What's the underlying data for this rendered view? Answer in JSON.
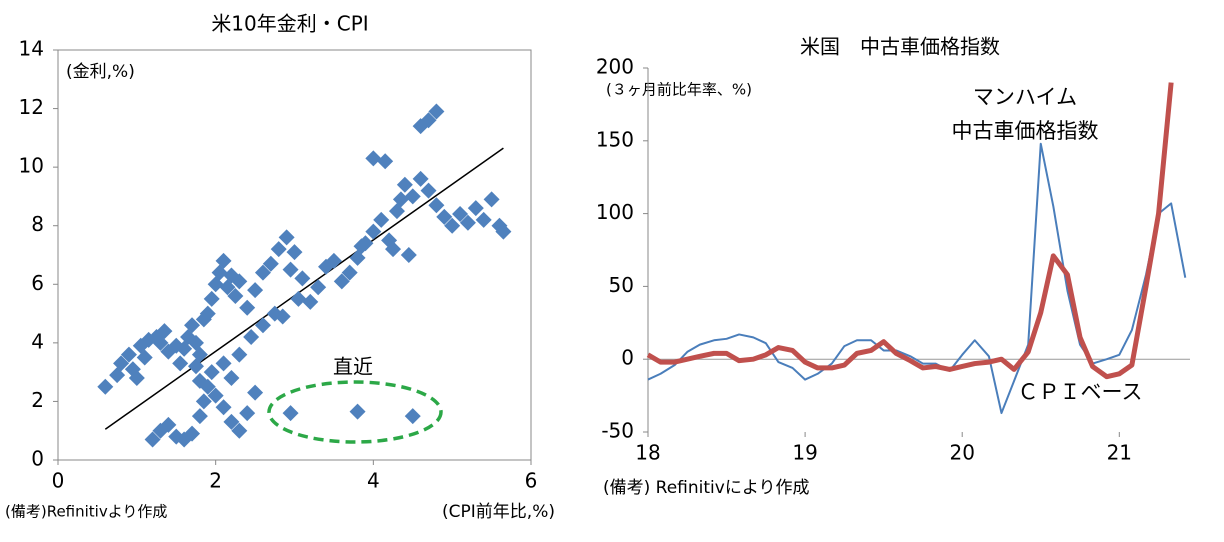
{
  "chart_data": [
    {
      "type": "scatter",
      "title": "米10年金利・CPI",
      "y_label": "(金利,%)",
      "x_label": "(CPI前年比,%)",
      "note": "(備考)Refinitivより作成",
      "annotation": "直近",
      "color": "#4f81bd",
      "xlim": [
        0,
        6
      ],
      "xticks": [
        0,
        2,
        4,
        6
      ],
      "ylim": [
        0,
        14
      ],
      "yticks": [
        0,
        2,
        4,
        6,
        8,
        10,
        12,
        14
      ],
      "x": [
        0.6,
        0.75,
        0.8,
        0.9,
        0.95,
        1.0,
        1.05,
        1.1,
        1.15,
        1.25,
        1.3,
        1.35,
        1.4,
        1.5,
        1.55,
        1.6,
        1.65,
        1.7,
        1.75,
        1.8,
        1.85,
        1.9,
        1.95,
        2.0,
        2.05,
        2.1,
        2.15,
        2.2,
        2.25,
        2.3,
        2.4,
        2.5,
        2.6,
        2.7,
        2.8,
        2.9,
        3.0,
        2.95,
        3.1,
        3.2,
        3.3,
        3.4,
        3.5,
        3.6,
        3.7,
        3.8,
        3.9,
        4.0,
        4.1,
        4.2,
        4.3,
        4.35,
        4.4,
        4.5,
        4.6,
        4.7,
        4.8,
        4.9,
        5.0,
        5.1,
        5.2,
        5.3,
        5.4,
        5.5,
        5.6,
        5.65,
        4.0,
        4.15,
        4.6,
        4.7,
        4.8,
        4.45,
        4.25,
        3.85,
        1.5,
        1.2,
        1.3,
        1.4,
        1.6,
        1.7,
        1.8,
        1.85,
        1.9,
        1.95,
        2.0,
        2.1,
        2.2,
        2.3,
        2.4,
        2.5,
        2.2,
        2.1,
        2.3,
        2.45,
        2.6,
        2.75,
        2.85,
        3.05,
        1.8,
        1.75,
        2.95,
        3.8,
        4.5
      ],
      "values": [
        2.5,
        2.9,
        3.3,
        3.6,
        3.1,
        2.8,
        3.9,
        3.5,
        4.1,
        4.2,
        4.0,
        4.4,
        3.7,
        3.9,
        3.3,
        3.8,
        4.2,
        4.6,
        4.0,
        3.6,
        4.8,
        5.0,
        5.5,
        6.0,
        6.4,
        6.8,
        5.9,
        6.3,
        5.6,
        6.1,
        5.2,
        5.8,
        6.4,
        6.7,
        7.2,
        7.6,
        7.1,
        6.5,
        6.2,
        5.4,
        5.9,
        6.6,
        6.8,
        6.1,
        6.4,
        6.9,
        7.4,
        7.8,
        8.2,
        7.5,
        8.5,
        8.9,
        9.4,
        9.0,
        9.6,
        9.2,
        8.7,
        8.3,
        8.0,
        8.4,
        8.1,
        8.6,
        8.2,
        8.9,
        8.0,
        7.8,
        10.3,
        10.2,
        11.4,
        11.6,
        11.9,
        7.0,
        7.2,
        7.3,
        0.8,
        0.7,
        1.0,
        1.2,
        0.7,
        0.9,
        1.5,
        2.0,
        2.5,
        3.0,
        2.2,
        1.8,
        1.3,
        1.0,
        1.6,
        2.3,
        2.8,
        3.3,
        3.6,
        4.2,
        4.6,
        5.0,
        4.9,
        5.5,
        2.7,
        3.2,
        1.6,
        1.65,
        1.5
      ],
      "trendline": {
        "x": [
          0.6,
          5.65
        ],
        "y": [
          1.05,
          10.65
        ]
      }
    },
    {
      "type": "line",
      "title": "米国　中古車価格指数",
      "y_label": "(３ヶ月前比年率、%)",
      "note": "(備考) Refinitivにより作成",
      "xlim": [
        18,
        21.45
      ],
      "xticks": [
        18,
        19,
        20,
        21
      ],
      "ylim": [
        -50,
        200
      ],
      "yticks": [
        -50,
        0,
        50,
        100,
        150,
        200
      ],
      "x": [
        18.0,
        18.08,
        18.17,
        18.25,
        18.33,
        18.42,
        18.5,
        18.58,
        18.67,
        18.75,
        18.83,
        18.92,
        19.0,
        19.08,
        19.17,
        19.25,
        19.33,
        19.42,
        19.5,
        19.58,
        19.67,
        19.75,
        19.83,
        19.92,
        20.0,
        20.08,
        20.17,
        20.25,
        20.33,
        20.42,
        20.5,
        20.58,
        20.67,
        20.75,
        20.83,
        20.92,
        21.0,
        21.08,
        21.17,
        21.25,
        21.33,
        21.42
      ],
      "series": [
        {
          "name": "マンハイム\n中古車価格指数",
          "color": "#4a7ebb",
          "values": [
            -14,
            -10,
            -4,
            5,
            10,
            13,
            14,
            17,
            15,
            11,
            -2,
            -6,
            -14,
            -10,
            -3,
            9,
            13,
            13,
            6,
            6,
            2,
            -3,
            -3,
            -8,
            3,
            13,
            2,
            -37,
            -15,
            10,
            148,
            105,
            47,
            10,
            -3,
            0,
            3,
            20,
            58,
            100,
            107,
            56
          ]
        },
        {
          "name": "ＣＰＩベース",
          "color": "#c0504d",
          "values": [
            3,
            -2,
            -2,
            0,
            2,
            4,
            4,
            -1,
            0,
            3,
            8,
            6,
            -2,
            -6,
            -6,
            -4,
            4,
            6,
            12,
            4,
            -1,
            -6,
            -5,
            -7,
            -5,
            -3,
            -2,
            0,
            -7,
            5,
            32,
            71,
            58,
            15,
            -5,
            -12,
            -10,
            -4,
            50,
            100,
            190,
            null
          ]
        }
      ]
    }
  ]
}
